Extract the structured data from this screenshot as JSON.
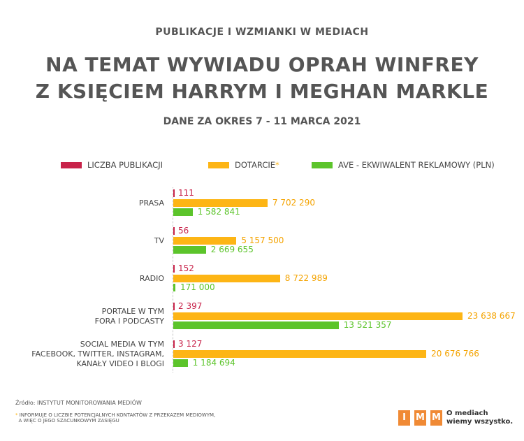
{
  "header": {
    "supertitle": "PUBLIKACJE I WZMIANKI W MEDIACH",
    "title_line1": "NA TEMAT WYWIADU OPRAH WINFREY",
    "title_line2": "Z KSIĘCIEM HARRYM I MEGHAN MARKLE",
    "subtitle": "DANE ZA OKRES 7 - 11 MARCA 2021"
  },
  "chart_data": {
    "type": "bar",
    "orientation": "horizontal",
    "title": "NA TEMAT WYWIADU OPRAH WINFREY Z KSIĘCIEM HARRYM I MEGHAN MARKLE",
    "categories": [
      [
        "PRASA"
      ],
      [
        "TV"
      ],
      [
        "RADIO"
      ],
      [
        "PORTALE W TYM",
        "FORA I PODCASTY"
      ],
      [
        "SOCIAL MEDIA W TYM",
        "FACEBOOK, TWITTER, INSTAGRAM,",
        "KANAŁY VIDEO I BLOGI"
      ]
    ],
    "series": [
      {
        "name": "LICZBA PUBLIKACJI",
        "color": "#c8234a",
        "values": [
          111,
          56,
          152,
          2397,
          3127
        ],
        "labels": [
          "111",
          "56",
          "152",
          "2 397",
          "3 127"
        ]
      },
      {
        "name": "DOTARCIE",
        "asterisk": "*",
        "color": "#fdb515",
        "values": [
          7702290,
          5157500,
          8722989,
          23638667,
          20676766
        ],
        "labels": [
          "7 702 290",
          "5 157 500",
          "8 722 989",
          "23 638 667",
          "20 676 766"
        ]
      },
      {
        "name": "AVE - EKWIWALENT REKLAMOWY (PLN)",
        "color": "#5cc42b",
        "values": [
          1582841,
          2669655,
          171000,
          13521357,
          1184694
        ],
        "labels": [
          "1 582 841",
          "2 669 655",
          "171 000",
          "13 521 357",
          "1 184 694"
        ]
      }
    ],
    "legend": "top"
  },
  "footer": {
    "source": "Źródło: INSTYTUT MONITOROWANIA MEDIÓW",
    "note_mark": "*",
    "note_line1": "INFORMUJE O LICZBIE POTENCJALNYCH KONTAKTÓW Z PRZEKAZEM MEDIOWYM,",
    "note_line2": "A WIĘC O JEGO SZACUNKOWYM ZASIĘGU"
  },
  "logo": {
    "letters": [
      "I",
      "M",
      "M"
    ],
    "tagline1": "O mediach",
    "tagline2": "wiemy wszystko."
  }
}
